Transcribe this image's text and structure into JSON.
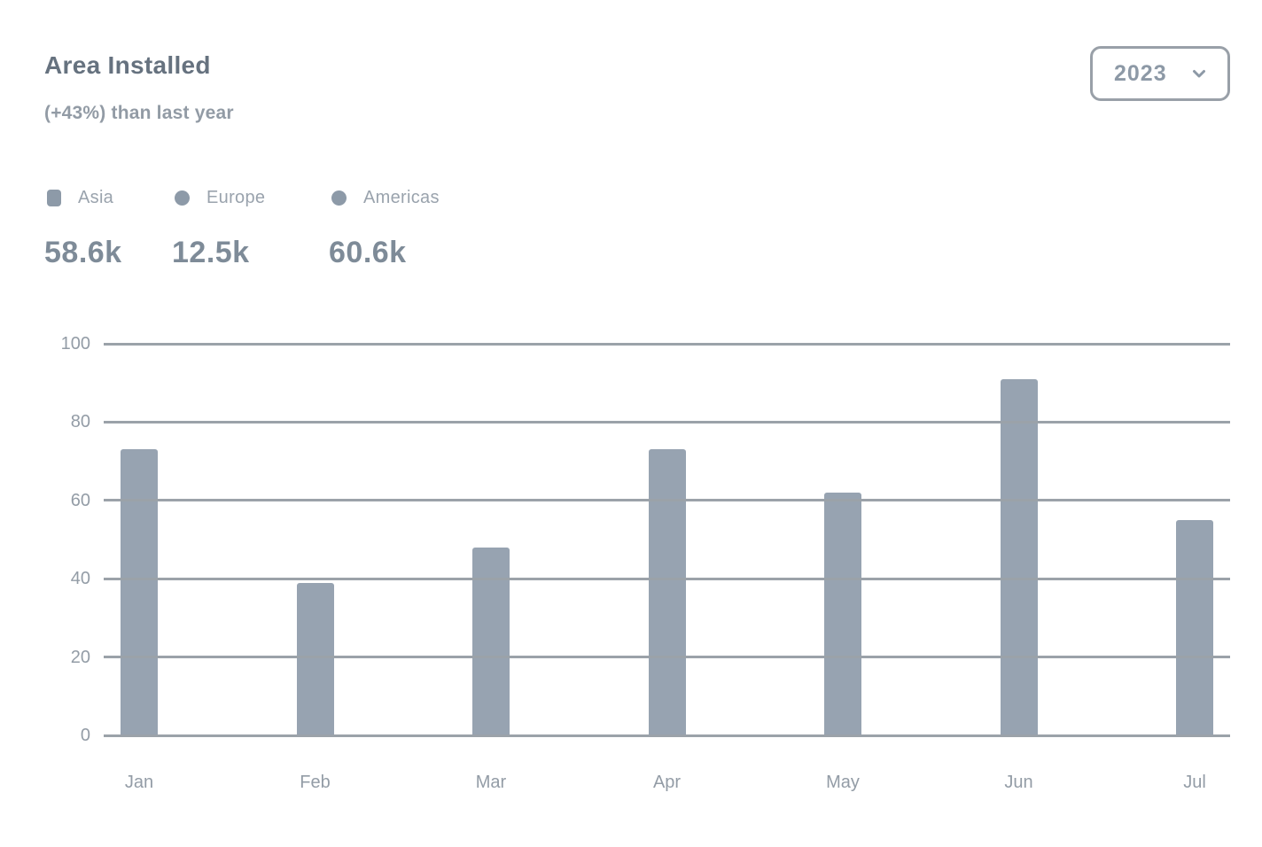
{
  "card": {
    "title": "Area Installed",
    "subtitle": "(+43%) than last year",
    "year_selector": {
      "value": "2023",
      "icon": "chevron-down-icon"
    }
  },
  "legend": {
    "items": [
      {
        "label": "Asia",
        "total": "58.6k",
        "marker": "square"
      },
      {
        "label": "Europe",
        "total": "12.5k",
        "marker": "circle"
      },
      {
        "label": "Americas",
        "total": "60.6k",
        "marker": "circle"
      }
    ]
  },
  "chart_data": {
    "type": "bar",
    "title": "Area Installed",
    "subtitle": "(+43%) than last year",
    "categories": [
      "Jan",
      "Feb",
      "Mar",
      "Apr",
      "May",
      "Jun",
      "Jul"
    ],
    "series": [
      {
        "name": "Asia",
        "values": [
          73,
          39,
          48,
          73,
          62,
          91,
          55
        ]
      }
    ],
    "legend_entries": [
      "Asia",
      "Europe",
      "Americas"
    ],
    "legend_totals": [
      "58.6k",
      "12.5k",
      "60.6k"
    ],
    "xlabel": "",
    "ylabel": "",
    "ylim": [
      0,
      100
    ],
    "yticks": [
      0,
      20,
      40,
      60,
      80,
      100
    ],
    "grid": true,
    "legend_position": "top-left",
    "selected_year": "2023"
  },
  "colors": {
    "bar": "#97a3b1",
    "grid": "#9ba2a9",
    "title": "#66727f",
    "subtitle": "#929ba5",
    "legend-label": "#9aa3ad",
    "legend-total": "#7e8b98",
    "axis-label": "#939ca6",
    "select-border": "#99a0a8",
    "select-text": "#8d99a6",
    "marker": "#8d9aa8"
  }
}
